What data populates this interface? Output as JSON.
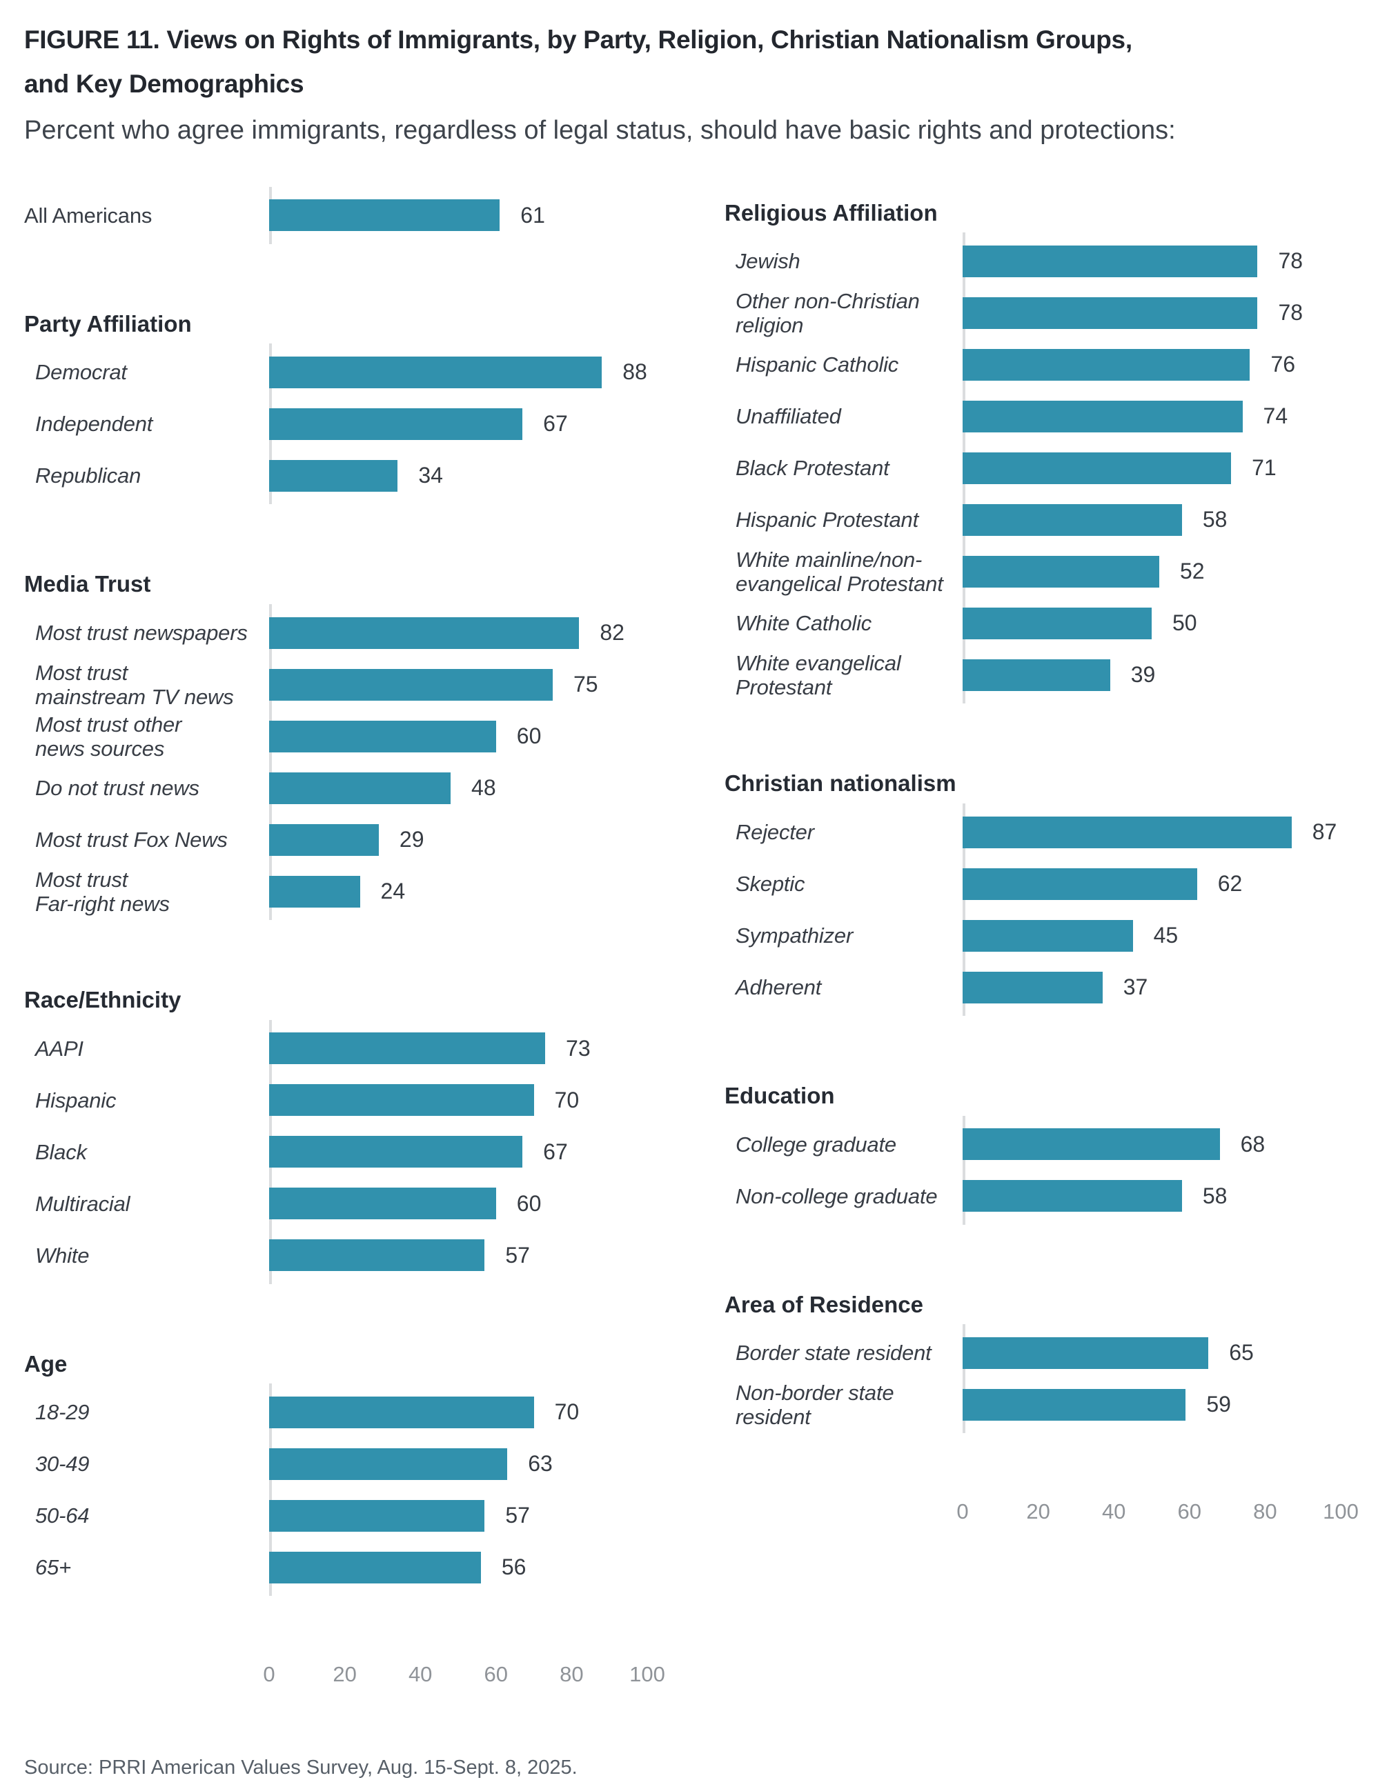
{
  "header": {
    "title": "FIGURE 11.  Views on Rights of Immigrants, by Party, Religion, Christian Nationalism Groups,\nand Key Demographics",
    "subtitle": "Percent who agree immigrants, regardless of legal status, should have basic rights and protections:"
  },
  "footer": {
    "source": "Source: PRRI American Values Survey, Aug. 15-Sept. 8, 2025."
  },
  "colors": {
    "bar": "#3191ad",
    "axis_line": "#dbdddf",
    "tick_label": "#8f9398"
  },
  "chart_data": {
    "type": "bar",
    "orientation": "horizontal",
    "title": "FIGURE 11. Views on Rights of Immigrants, by Party, Religion, Christian Nationalism Groups, and Key Demographics",
    "subtitle": "Percent who agree immigrants, regardless of legal status, should have basic rights and protections:",
    "unit": "percent",
    "xlim": [
      0,
      100
    ],
    "x_ticks": [
      0,
      20,
      40,
      60,
      80,
      100
    ],
    "grid": false,
    "legend": null,
    "columns": [
      {
        "id": "left",
        "show_axis": true,
        "sections": [
          {
            "header": "",
            "rows": [
              {
                "label": "All Americans",
                "value": 61,
                "italic": false
              }
            ]
          },
          {
            "header": "Party Affiliation",
            "rows": [
              {
                "label": "Democrat",
                "value": 88
              },
              {
                "label": "Independent",
                "value": 67
              },
              {
                "label": "Republican",
                "value": 34
              }
            ]
          },
          {
            "header": "Media Trust",
            "rows": [
              {
                "label": "Most trust newspapers",
                "value": 82
              },
              {
                "label": "Most trust\nmainstream TV news",
                "value": 75
              },
              {
                "label": "Most trust other\nnews sources",
                "value": 60
              },
              {
                "label": "Do not trust news",
                "value": 48
              },
              {
                "label": "Most trust Fox News",
                "value": 29
              },
              {
                "label": "Most trust\nFar-right news",
                "value": 24
              }
            ]
          },
          {
            "header": "Race/Ethnicity",
            "rows": [
              {
                "label": "AAPI",
                "value": 73
              },
              {
                "label": "Hispanic",
                "value": 70
              },
              {
                "label": "Black",
                "value": 67
              },
              {
                "label": "Multiracial",
                "value": 60
              },
              {
                "label": "White",
                "value": 57
              }
            ]
          },
          {
            "header": "Age",
            "rows": [
              {
                "label": "18-29",
                "value": 70
              },
              {
                "label": "30-49",
                "value": 63
              },
              {
                "label": "50-64",
                "value": 57
              },
              {
                "label": "65+",
                "value": 56
              }
            ]
          }
        ]
      },
      {
        "id": "right",
        "show_axis": true,
        "sections": [
          {
            "header": "Religious Affiliation",
            "rows": [
              {
                "label": "Jewish",
                "value": 78
              },
              {
                "label": "Other non-Christian\nreligion",
                "value": 78
              },
              {
                "label": "Hispanic Catholic",
                "value": 76
              },
              {
                "label": "Unaffiliated",
                "value": 74
              },
              {
                "label": "Black Protestant",
                "value": 71
              },
              {
                "label": "Hispanic Protestant",
                "value": 58
              },
              {
                "label": "White mainline/non-\nevangelical Protestant",
                "value": 52
              },
              {
                "label": "White Catholic",
                "value": 50
              },
              {
                "label": "White evangelical\nProtestant",
                "value": 39
              }
            ]
          },
          {
            "header": "Christian nationalism",
            "rows": [
              {
                "label": "Rejecter",
                "value": 87
              },
              {
                "label": "Skeptic",
                "value": 62
              },
              {
                "label": "Sympathizer",
                "value": 45
              },
              {
                "label": "Adherent",
                "value": 37
              }
            ]
          },
          {
            "header": "Education",
            "rows": [
              {
                "label": "College graduate",
                "value": 68
              },
              {
                "label": "Non-college graduate",
                "value": 58
              }
            ]
          },
          {
            "header": "Area of Residence",
            "rows": [
              {
                "label": "Border state resident",
                "value": 65
              },
              {
                "label": "Non-border state\nresident",
                "value": 59
              }
            ]
          }
        ]
      }
    ]
  }
}
